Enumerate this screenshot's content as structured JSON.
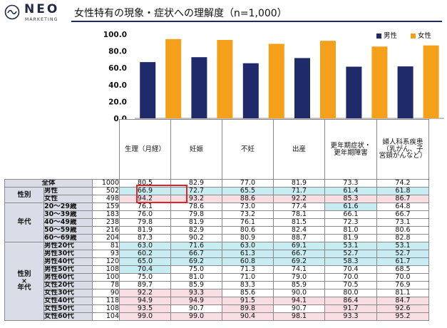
{
  "logo": {
    "name": "NEO",
    "sub": "MARKETING"
  },
  "title": "女性特有の現象・症状への理解度（n=1,000）",
  "legend": [
    {
      "label": "男性",
      "color": "#1f2a6b"
    },
    {
      "label": "女性",
      "color": "#f5a01a"
    }
  ],
  "chart_data": {
    "type": "bar",
    "categories": [
      "生理（月経）",
      "妊娠",
      "不妊",
      "出産",
      "更年期症状・更年期障害",
      "婦人科系疾患（乳がん、子宮頸がんなど）"
    ],
    "series": [
      {
        "name": "男性",
        "color": "#1f2a6b",
        "values": [
          66.9,
          72.7,
          65.5,
          71.7,
          61.4,
          61.8
        ]
      },
      {
        "name": "女性",
        "color": "#f5a01a",
        "values": [
          94.2,
          93.2,
          88.6,
          92.2,
          85.3,
          86.7
        ]
      }
    ],
    "yticks": [
      "100.0",
      "80.0",
      "60.0",
      "40.0",
      "20.0",
      "0.0"
    ],
    "ylim": [
      0,
      100
    ],
    "legend_position": "top-right"
  },
  "table": {
    "headers": [
      "生理（月経）",
      "妊娠",
      "不妊",
      "出産",
      "更年期症状・\n更年期障害",
      "婦人科系疾患\n（乳がん、子\n宮頸がんなど）"
    ],
    "groups": [
      {
        "label": "",
        "rows": [
          {
            "label": "全体",
            "n": "1000",
            "values": [
              "80.5",
              "82.9",
              "77.0",
              "81.9",
              "73.3",
              "74.2"
            ],
            "hl": [
              "",
              "",
              "",
              "",
              "",
              ""
            ]
          }
        ]
      },
      {
        "label": "性別",
        "rows": [
          {
            "label": "男性",
            "n": "502",
            "values": [
              "66.9",
              "72.7",
              "65.5",
              "71.7",
              "61.4",
              "61.8"
            ],
            "hl": [
              "b",
              "b",
              "b",
              "b",
              "b",
              "b"
            ]
          },
          {
            "label": "女性",
            "n": "498",
            "values": [
              "94.2",
              "93.2",
              "88.6",
              "92.2",
              "85.3",
              "86.7"
            ],
            "hl": [
              "p",
              "p",
              "p",
              "p",
              "p",
              "p"
            ]
          }
        ]
      },
      {
        "label": "年代",
        "rows": [
          {
            "label": "20～29歳",
            "n": "159",
            "values": [
              "76.1",
              "78.6",
              "73.0",
              "77.4",
              "61.6",
              "64.8"
            ],
            "hl": [
              "",
              "",
              "",
              "",
              "b",
              ""
            ]
          },
          {
            "label": "30～39歳",
            "n": "183",
            "values": [
              "76.0",
              "79.8",
              "73.2",
              "78.1",
              "66.1",
              "66.7"
            ],
            "hl": [
              "",
              "",
              "",
              "",
              "",
              ""
            ]
          },
          {
            "label": "40～49歳",
            "n": "238",
            "values": [
              "79.8",
              "81.9",
              "76.1",
              "81.5",
              "72.3",
              "73.1"
            ],
            "hl": [
              "",
              "",
              "",
              "",
              "",
              ""
            ]
          },
          {
            "label": "50～59歳",
            "n": "216",
            "values": [
              "81.9",
              "82.9",
              "80.6",
              "82.4",
              "81.0",
              "80.6"
            ],
            "hl": [
              "",
              "",
              "",
              "",
              "",
              ""
            ]
          },
          {
            "label": "60～69歳",
            "n": "204",
            "values": [
              "87.3",
              "90.2",
              "80.9",
              "88.7",
              "81.9",
              "82.8"
            ],
            "hl": [
              "",
              "",
              "",
              "",
              "",
              ""
            ]
          }
        ]
      },
      {
        "label": "性別\n×\n年代",
        "rows": [
          {
            "label": "男性20代",
            "n": "81",
            "values": [
              "63.0",
              "71.6",
              "63.0",
              "69.1",
              "53.1",
              "53.1"
            ],
            "hl": [
              "b",
              "b",
              "b",
              "b",
              "b",
              "b"
            ]
          },
          {
            "label": "男性30代",
            "n": "93",
            "values": [
              "60.2",
              "66.7",
              "61.3",
              "66.7",
              "52.7",
              "52.7"
            ],
            "hl": [
              "b",
              "b",
              "b",
              "b",
              "b",
              "b"
            ]
          },
          {
            "label": "男性40代",
            "n": "120",
            "values": [
              "65.0",
              "69.2",
              "60.8",
              "69.2",
              "58.3",
              "61.7"
            ],
            "hl": [
              "b",
              "b",
              "b",
              "b",
              "b",
              "b"
            ]
          },
          {
            "label": "男性50代",
            "n": "108",
            "values": [
              "70.4",
              "75.0",
              "71.3",
              "74.1",
              "70.4",
              "68.5"
            ],
            "hl": [
              "b",
              "",
              "",
              "",
              "",
              ""
            ]
          },
          {
            "label": "男性60代",
            "n": "100",
            "values": [
              "75.0",
              "81.0",
              "71.0",
              "79.0",
              "70.0",
              "70.0"
            ],
            "hl": [
              "",
              "",
              "",
              "",
              "",
              ""
            ]
          },
          {
            "label": "女性20代",
            "n": "78",
            "values": [
              "89.7",
              "85.9",
              "83.3",
              "85.9",
              "70.5",
              "76.9"
            ],
            "hl": [
              "",
              "",
              "",
              "",
              "",
              ""
            ]
          },
          {
            "label": "女性30代",
            "n": "90",
            "values": [
              "92.2",
              "93.3",
              "85.6",
              "90.0",
              "80.0",
              "81.1"
            ],
            "hl": [
              "p",
              "p",
              "",
              "",
              "",
              ""
            ]
          },
          {
            "label": "女性40代",
            "n": "118",
            "values": [
              "94.9",
              "94.9",
              "91.5",
              "94.1",
              "86.4",
              "84.7"
            ],
            "hl": [
              "p",
              "p",
              "p",
              "p",
              "p",
              "p"
            ]
          },
          {
            "label": "女性50代",
            "n": "108",
            "values": [
              "93.5",
              "90.7",
              "89.8",
              "90.7",
              "91.7",
              "92.6"
            ],
            "hl": [
              "p",
              "",
              "p",
              "",
              "p",
              "p"
            ]
          },
          {
            "label": "女性60代",
            "n": "104",
            "values": [
              "99.0",
              "99.0",
              "90.4",
              "98.1",
              "93.3",
              "95.2"
            ],
            "hl": [
              "p",
              "p",
              "p",
              "p",
              "p",
              "p"
            ]
          }
        ]
      }
    ]
  }
}
